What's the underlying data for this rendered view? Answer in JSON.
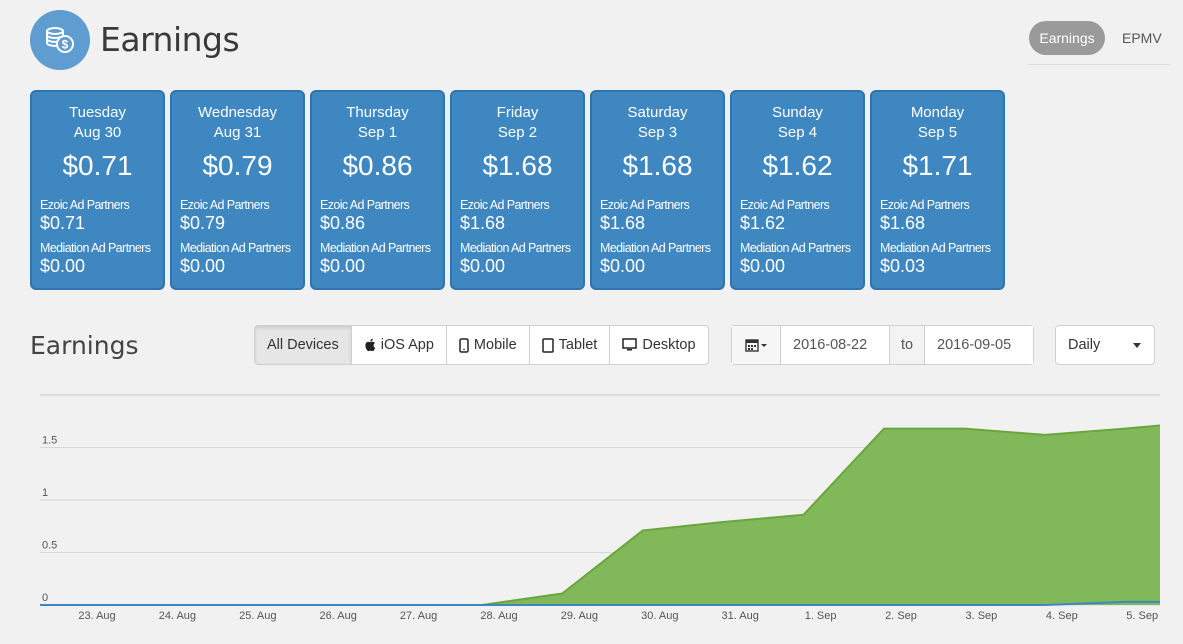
{
  "header": {
    "title": "Earnings",
    "icon": "coins-icon",
    "toggle": [
      "Earnings",
      "EPMV"
    ]
  },
  "cards": [
    {
      "day": "Tuesday",
      "date": "Aug 30",
      "total": "$0.71",
      "ezoic_label": "Ezoic Ad Partners",
      "ezoic_value": "$0.71",
      "mediation_label": "Mediation Ad Partners",
      "mediation_value": "$0.00"
    },
    {
      "day": "Wednesday",
      "date": "Aug 31",
      "total": "$0.79",
      "ezoic_label": "Ezoic Ad Partners",
      "ezoic_value": "$0.79",
      "mediation_label": "Mediation Ad Partners",
      "mediation_value": "$0.00"
    },
    {
      "day": "Thursday",
      "date": "Sep 1",
      "total": "$0.86",
      "ezoic_label": "Ezoic Ad Partners",
      "ezoic_value": "$0.86",
      "mediation_label": "Mediation Ad Partners",
      "mediation_value": "$0.00"
    },
    {
      "day": "Friday",
      "date": "Sep 2",
      "total": "$1.68",
      "ezoic_label": "Ezoic Ad Partners",
      "ezoic_value": "$1.68",
      "mediation_label": "Mediation Ad Partners",
      "mediation_value": "$0.00"
    },
    {
      "day": "Saturday",
      "date": "Sep 3",
      "total": "$1.68",
      "ezoic_label": "Ezoic Ad Partners",
      "ezoic_value": "$1.68",
      "mediation_label": "Mediation Ad Partners",
      "mediation_value": "$0.00"
    },
    {
      "day": "Sunday",
      "date": "Sep 4",
      "total": "$1.62",
      "ezoic_label": "Ezoic Ad Partners",
      "ezoic_value": "$1.62",
      "mediation_label": "Mediation Ad Partners",
      "mediation_value": "$0.00"
    },
    {
      "day": "Monday",
      "date": "Sep 5",
      "total": "$1.71",
      "ezoic_label": "Ezoic Ad Partners",
      "ezoic_value": "$1.68",
      "mediation_label": "Mediation Ad Partners",
      "mediation_value": "$0.03"
    }
  ],
  "section": {
    "title": "Earnings"
  },
  "devices": [
    "All Devices",
    "iOS App",
    "Mobile",
    "Tablet",
    "Desktop"
  ],
  "date_range": {
    "from": "2016-08-22",
    "to_label": "to",
    "to": "2016-09-05"
  },
  "period": {
    "selected": "Daily"
  },
  "colors": {
    "card_bg": "#3f87c1",
    "area_fill": "#80b85a",
    "area_line": "#6aa63c",
    "mediation_line": "#3f87c1"
  },
  "chart_data": {
    "type": "area",
    "x": [
      "23. Aug",
      "24. Aug",
      "25. Aug",
      "26. Aug",
      "27. Aug",
      "28. Aug",
      "29. Aug",
      "30. Aug",
      "31. Aug",
      "1. Sep",
      "2. Sep",
      "3. Sep",
      "4. Sep",
      "5. Sep"
    ],
    "y_ticks": [
      "0",
      "0.5",
      "1",
      "1.5"
    ],
    "ylim": [
      0,
      2
    ],
    "series": [
      {
        "name": "Ezoic Ad Partners",
        "values": [
          0,
          0,
          0,
          0,
          0,
          0,
          0.11,
          0.71,
          0.79,
          0.86,
          1.68,
          1.68,
          1.62,
          1.68
        ]
      },
      {
        "name": "Mediation Ad Partners",
        "values": [
          0,
          0,
          0,
          0,
          0,
          0,
          0,
          0,
          0,
          0,
          0,
          0,
          0,
          0.03
        ]
      }
    ]
  }
}
